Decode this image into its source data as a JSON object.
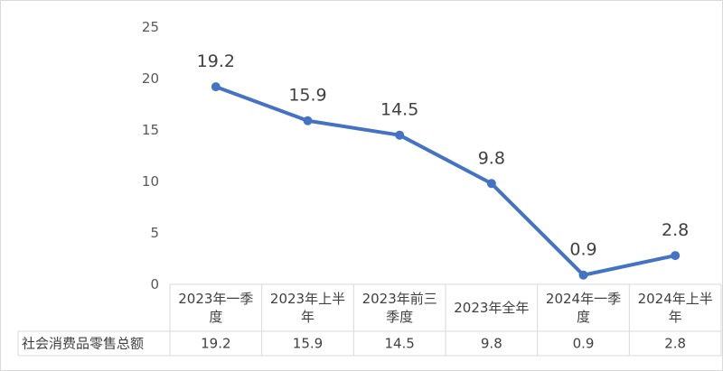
{
  "chart_data": {
    "type": "line",
    "title": "",
    "xlabel": "",
    "ylabel": "",
    "ylim": [
      0,
      25
    ],
    "yticks": [
      0,
      5,
      10,
      15,
      20,
      25
    ],
    "grid": false,
    "legend": "none",
    "categories": [
      [
        "2023年一季",
        "度"
      ],
      [
        "2023年上半",
        "年"
      ],
      [
        "2023年前三",
        "季度"
      ],
      [
        "2023年全年"
      ],
      [
        "2024年一季",
        "度"
      ],
      [
        "2024年上半",
        "年"
      ]
    ],
    "series": [
      {
        "name": "社会消费品零售总额",
        "values": [
          19.2,
          15.9,
          14.5,
          9.8,
          0.9,
          2.8
        ]
      }
    ],
    "data_table": {
      "row_label": "社会消费品零售总额",
      "values": [
        "19.2",
        "15.9",
        "14.5",
        "9.8",
        "0.9",
        "2.8"
      ]
    },
    "colors": {
      "line": "#4472c4",
      "axis": "#d9d9d9",
      "text": "#404040"
    }
  }
}
